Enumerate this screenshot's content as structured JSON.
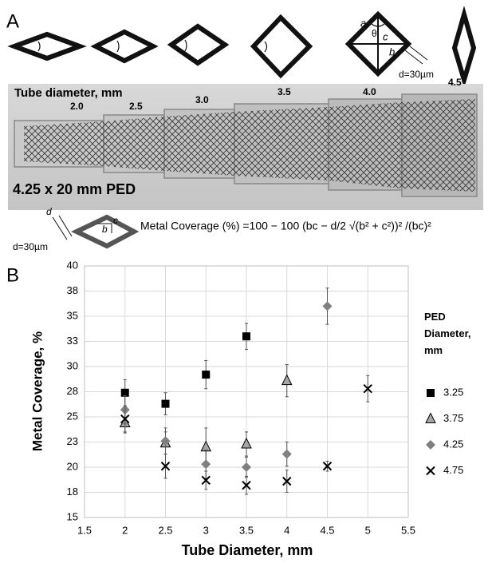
{
  "panel_a": {
    "label": "A",
    "tube_label": "Tube diameter, mm",
    "tube_diameters": [
      "2.0",
      "2.5",
      "3.0",
      "3.5",
      "4.0",
      "4.5"
    ],
    "stent_label": "4.25 x 20 mm PED",
    "wire_width": "d=30µm",
    "geometry_labels": [
      "a",
      "θ",
      "c",
      "b"
    ],
    "small_labels": [
      "d",
      "c",
      "b"
    ],
    "formula": "Metal Coverage (%) =100 − 100 (bc − d/2 √(b² + c²))² /(bc)²"
  },
  "chart_data": {
    "type": "scatter",
    "panel_label": "B",
    "x_label": "Tube Diameter, mm",
    "y_label": "Metal Coverage, %",
    "legend_title": "PED Diameter, mm",
    "xlim": [
      1.5,
      5.5
    ],
    "xticks": [
      1.5,
      2,
      2.5,
      3,
      3.5,
      4,
      4.5,
      5,
      5.5
    ],
    "ylim": [
      15,
      40
    ],
    "yticks": [
      15,
      {
        "value": 17.5,
        "label": "18"
      },
      20,
      {
        "value": 22.5,
        "label": "23"
      },
      25,
      {
        "value": 27.5,
        "label": "28"
      },
      30,
      {
        "value": 32.5,
        "label": "33"
      },
      35,
      {
        "value": 37.5,
        "label": "38"
      },
      40
    ],
    "grid": true,
    "series": [
      {
        "name": "3.25",
        "marker": "square",
        "color": "#000000",
        "x": [
          2,
          2.5,
          3,
          3.5
        ],
        "values": [
          27.4,
          26.3,
          29.2,
          33.0
        ],
        "errors": [
          1.3,
          1.1,
          1.4,
          1.3
        ]
      },
      {
        "name": "3.75",
        "marker": "triangle",
        "color": "#a6a6a6",
        "x": [
          2,
          2.5,
          3,
          3.5,
          4
        ],
        "values": [
          24.4,
          22.4,
          22.0,
          22.3,
          28.6
        ],
        "errors": [
          1.0,
          1.1,
          1.9,
          1.2,
          1.6
        ]
      },
      {
        "name": "4.25",
        "marker": "diamond",
        "color": "#808080",
        "x": [
          2,
          2.5,
          3,
          3.5,
          4,
          4.5
        ],
        "values": [
          25.7,
          22.6,
          20.3,
          20.0,
          21.3,
          36.0
        ],
        "errors": [
          1.4,
          1.3,
          1.4,
          1.0,
          1.2,
          1.8
        ]
      },
      {
        "name": "4.75",
        "marker": "x",
        "color": "#000000",
        "x": [
          2,
          2.5,
          3,
          3.5,
          4,
          4.5,
          5
        ],
        "values": [
          24.8,
          20.1,
          18.7,
          18.2,
          18.6,
          20.1,
          27.8
        ],
        "errors": [
          1.3,
          1.2,
          0.9,
          0.9,
          1.1,
          0.5,
          1.3
        ]
      }
    ]
  }
}
